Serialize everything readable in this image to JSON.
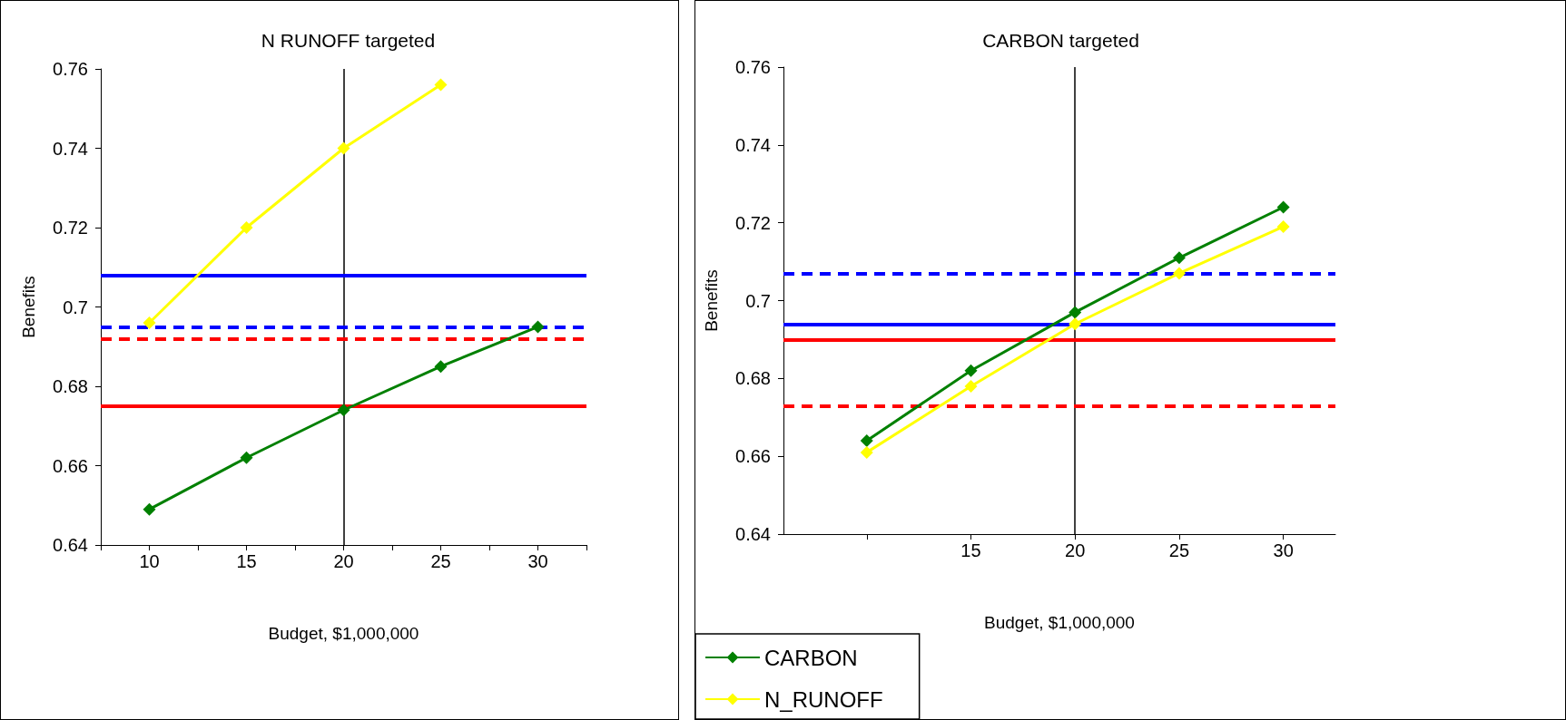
{
  "chart_data": [
    {
      "type": "line",
      "title": "N RUNOFF targeted",
      "xlabel": "Budget, $1,000,000",
      "ylabel": "Benefits",
      "x": [
        10,
        15,
        20,
        25,
        30
      ],
      "series": [
        {
          "color": "#008000",
          "values": [
            0.649,
            0.662,
            0.674,
            0.685,
            0.695
          ]
        },
        {
          "color": "#ffff00",
          "values": [
            0.696,
            0.72,
            0.74,
            0.756,
            null
          ]
        }
      ],
      "xlim": [
        7.5,
        32.5
      ],
      "xticks": [
        {
          "value": 7.5,
          "label": null
        },
        10,
        {
          "value": 12.5,
          "label": null
        },
        15,
        {
          "value": 17.5,
          "label": null
        },
        20,
        {
          "value": 22.5,
          "label": null
        },
        25,
        {
          "value": 27.5,
          "label": null
        },
        30,
        {
          "value": 32.5,
          "label": null
        }
      ],
      "ylim": [
        0.64,
        0.76
      ],
      "yticks": [
        0.64,
        0.66,
        0.68,
        0.7,
        0.72,
        0.74,
        0.76
      ],
      "ref_lines": [
        {
          "axis": "x",
          "value": 20,
          "color": "#000000",
          "line_style": "solid"
        },
        {
          "axis": "y",
          "value": 0.708,
          "color": "#0000ff",
          "line_style": "solid"
        },
        {
          "axis": "y",
          "value": 0.695,
          "color": "#0000ff",
          "line_style": "dashed"
        },
        {
          "axis": "y",
          "value": 0.692,
          "color": "#ff0000",
          "line_style": "dashed"
        },
        {
          "axis": "y",
          "value": 0.675,
          "color": "#ff0000",
          "line_style": "solid"
        }
      ],
      "marker": "diamond",
      "grid": false,
      "legend": false
    },
    {
      "type": "line",
      "title": "CARBON targeted",
      "xlabel": "Budget, $1,000,000",
      "ylabel": "Benefits",
      "x": [
        10,
        15,
        20,
        25,
        30
      ],
      "series": [
        {
          "name": "CARBON",
          "color": "#008000",
          "values": [
            0.664,
            0.682,
            0.697,
            0.711,
            0.724
          ]
        },
        {
          "name": "N_RUNOFF",
          "color": "#ffff00",
          "values": [
            0.661,
            0.678,
            0.694,
            0.707,
            0.719
          ]
        }
      ],
      "xlim": [
        6,
        32.5
      ],
      "xticks": [
        {
          "value": 10,
          "label": null
        },
        15,
        20,
        25,
        30
      ],
      "ylim": [
        0.64,
        0.76
      ],
      "yticks": [
        0.64,
        0.66,
        0.68,
        0.7,
        0.72,
        0.74,
        0.76
      ],
      "ref_lines": [
        {
          "axis": "x",
          "value": 20,
          "color": "#000000",
          "line_style": "solid"
        },
        {
          "axis": "y",
          "value": 0.707,
          "color": "#0000ff",
          "line_style": "dashed"
        },
        {
          "axis": "y",
          "value": 0.694,
          "color": "#0000ff",
          "line_style": "solid"
        },
        {
          "axis": "y",
          "value": 0.69,
          "color": "#ff0000",
          "line_style": "solid"
        },
        {
          "axis": "y",
          "value": 0.673,
          "color": "#ff0000",
          "line_style": "dashed"
        }
      ],
      "marker": "diamond",
      "grid": false,
      "legend": "bottom left"
    }
  ]
}
